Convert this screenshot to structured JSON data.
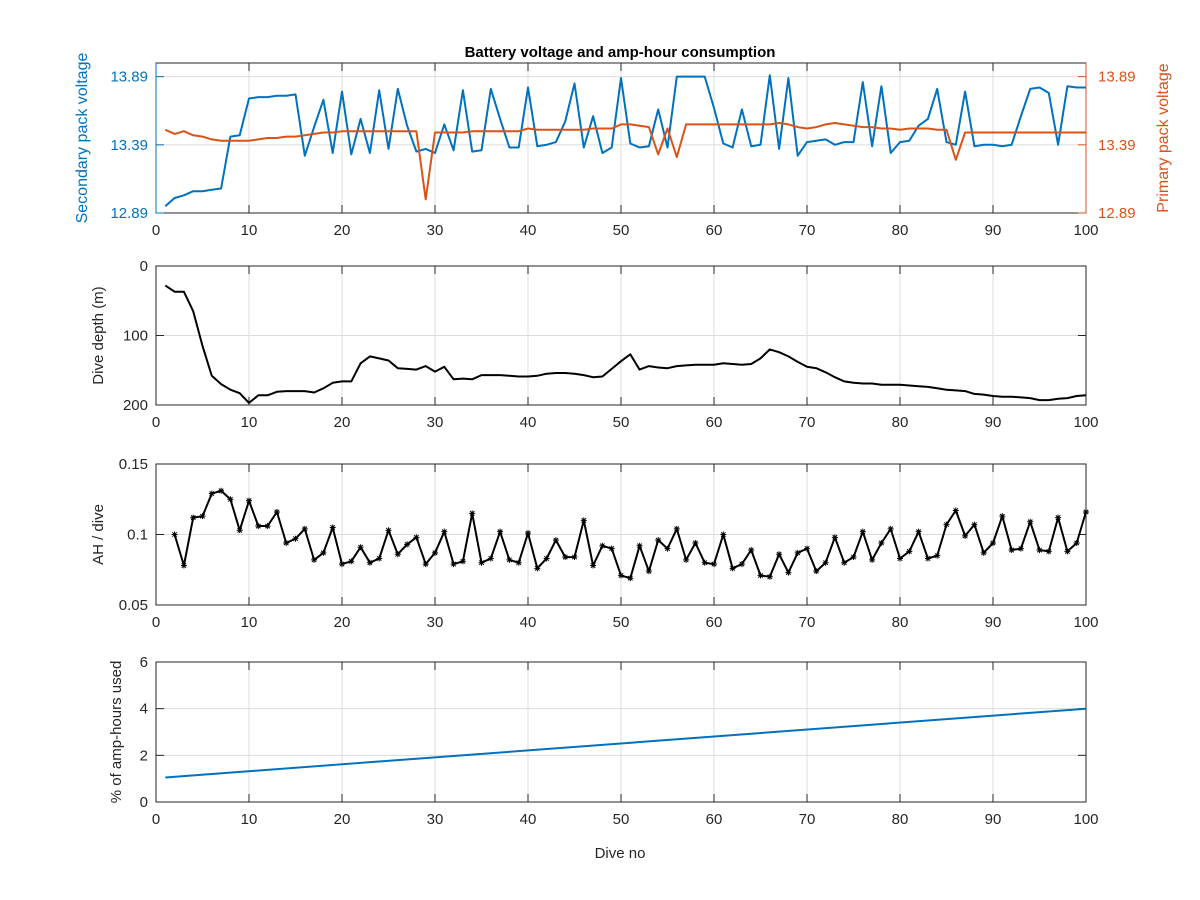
{
  "figure": {
    "title": "Battery voltage and amp-hour consumption",
    "xlabel": "Dive no"
  },
  "chart_data": [
    {
      "type": "line",
      "title": "Battery voltage and amp-hour consumption",
      "xlabel": "",
      "xlim": [
        0,
        100
      ],
      "xticks": [
        0,
        10,
        20,
        30,
        40,
        50,
        60,
        70,
        80,
        90,
        100
      ],
      "grid": true,
      "left_axis": {
        "label": "Secondary pack voltage",
        "ylim": [
          12.89,
          13.99
        ],
        "ticks": [
          12.89,
          13.39,
          13.89
        ],
        "tick_labels": [
          "12.89",
          "13.39",
          "13.89"
        ],
        "color": "#0072BD"
      },
      "right_axis": {
        "label": "Primary pack voltage",
        "ylim": [
          12.89,
          13.99
        ],
        "ticks": [
          12.89,
          13.39,
          13.89
        ],
        "tick_labels": [
          "12.89",
          "13.39",
          "13.89"
        ],
        "color": "#D95319"
      },
      "series": [
        {
          "axis": "left",
          "color": "#0072BD",
          "x": [
            1,
            2,
            3,
            4,
            5,
            6,
            7,
            8,
            9,
            10,
            11,
            12,
            13,
            14,
            15,
            16,
            17,
            18,
            19,
            20,
            21,
            22,
            23,
            24,
            25,
            26,
            27,
            28,
            29,
            30,
            31,
            32,
            33,
            34,
            35,
            36,
            37,
            38,
            39,
            40,
            41,
            42,
            43,
            44,
            45,
            46,
            47,
            48,
            49,
            50,
            51,
            52,
            53,
            54,
            55,
            56,
            57,
            58,
            59,
            60,
            61,
            62,
            63,
            64,
            65,
            66,
            67,
            68,
            69,
            70,
            71,
            72,
            73,
            74,
            75,
            76,
            77,
            78,
            79,
            80,
            81,
            82,
            83,
            84,
            85,
            86,
            87,
            88,
            89,
            90,
            91,
            92,
            93,
            94,
            95,
            96,
            97,
            98,
            99,
            100
          ],
          "values": [
            12.94,
            13.0,
            13.02,
            13.05,
            13.05,
            13.06,
            13.07,
            13.45,
            13.46,
            13.73,
            13.74,
            13.74,
            13.75,
            13.75,
            13.76,
            13.31,
            13.52,
            13.72,
            13.33,
            13.78,
            13.32,
            13.58,
            13.33,
            13.79,
            13.36,
            13.8,
            13.53,
            13.34,
            13.36,
            13.33,
            13.54,
            13.35,
            13.79,
            13.34,
            13.35,
            13.8,
            13.58,
            13.37,
            13.37,
            13.81,
            13.38,
            13.39,
            13.41,
            13.56,
            13.84,
            13.37,
            13.6,
            13.33,
            13.37,
            13.88,
            13.4,
            13.37,
            13.38,
            13.65,
            13.37,
            13.89,
            13.89,
            13.89,
            13.89,
            13.66,
            13.4,
            13.37,
            13.65,
            13.38,
            13.39,
            13.9,
            13.36,
            13.88,
            13.31,
            13.41,
            13.42,
            13.43,
            13.39,
            13.41,
            13.41,
            13.85,
            13.38,
            13.82,
            13.33,
            13.41,
            13.42,
            13.53,
            13.58,
            13.8,
            13.41,
            13.39,
            13.78,
            13.38,
            13.39,
            13.39,
            13.38,
            13.39,
            13.6,
            13.8,
            13.81,
            13.77,
            13.39,
            13.82,
            13.81,
            13.81
          ]
        },
        {
          "axis": "right",
          "color": "#D95319",
          "x": [
            1,
            2,
            3,
            4,
            5,
            6,
            7,
            8,
            9,
            10,
            11,
            12,
            13,
            14,
            15,
            16,
            17,
            18,
            19,
            20,
            21,
            22,
            23,
            24,
            25,
            26,
            27,
            28,
            29,
            30,
            31,
            32,
            33,
            34,
            35,
            36,
            37,
            38,
            39,
            40,
            41,
            42,
            43,
            44,
            45,
            46,
            47,
            48,
            49,
            50,
            51,
            52,
            53,
            54,
            55,
            56,
            57,
            58,
            59,
            60,
            61,
            62,
            63,
            64,
            65,
            66,
            67,
            68,
            69,
            70,
            71,
            72,
            73,
            74,
            75,
            76,
            77,
            78,
            79,
            80,
            81,
            82,
            83,
            84,
            85,
            86,
            87,
            88,
            89,
            90,
            91,
            92,
            93,
            94,
            95,
            96,
            97,
            98,
            99,
            100
          ],
          "values": [
            13.5,
            13.47,
            13.49,
            13.46,
            13.45,
            13.43,
            13.42,
            13.42,
            13.42,
            13.42,
            13.43,
            13.44,
            13.44,
            13.45,
            13.45,
            13.46,
            13.47,
            13.48,
            13.48,
            13.49,
            13.49,
            13.49,
            13.49,
            13.49,
            13.49,
            13.49,
            13.49,
            13.49,
            12.99,
            13.48,
            13.48,
            13.48,
            13.48,
            13.49,
            13.49,
            13.49,
            13.49,
            13.49,
            13.49,
            13.51,
            13.5,
            13.5,
            13.5,
            13.5,
            13.5,
            13.5,
            13.51,
            13.51,
            13.51,
            13.54,
            13.54,
            13.53,
            13.52,
            13.32,
            13.51,
            13.3,
            13.54,
            13.54,
            13.54,
            13.54,
            13.54,
            13.54,
            13.54,
            13.54,
            13.54,
            13.54,
            13.55,
            13.54,
            13.52,
            13.51,
            13.52,
            13.54,
            13.55,
            13.54,
            13.53,
            13.52,
            13.52,
            13.51,
            13.51,
            13.5,
            13.51,
            13.51,
            13.51,
            13.5,
            13.5,
            13.28,
            13.48,
            13.48,
            13.48,
            13.48,
            13.48,
            13.48,
            13.48,
            13.48,
            13.48,
            13.48,
            13.48,
            13.48,
            13.48,
            13.48
          ]
        }
      ]
    },
    {
      "type": "line",
      "title": "",
      "xlabel": "",
      "ylabel": "Dive depth (m)",
      "xlim": [
        0,
        100
      ],
      "ylim": [
        0,
        200
      ],
      "y_reversed": true,
      "xticks": [
        0,
        10,
        20,
        30,
        40,
        50,
        60,
        70,
        80,
        90,
        100
      ],
      "yticks": [
        0,
        100,
        200
      ],
      "grid": true,
      "series": [
        {
          "color": "#000000",
          "x": [
            1,
            2,
            3,
            4,
            5,
            6,
            7,
            8,
            9,
            10,
            11,
            12,
            13,
            14,
            15,
            16,
            17,
            18,
            19,
            20,
            21,
            22,
            23,
            24,
            25,
            26,
            27,
            28,
            29,
            30,
            31,
            32,
            33,
            34,
            35,
            36,
            37,
            38,
            39,
            40,
            41,
            42,
            43,
            44,
            45,
            46,
            47,
            48,
            49,
            50,
            51,
            52,
            53,
            54,
            55,
            56,
            57,
            58,
            59,
            60,
            61,
            62,
            63,
            64,
            65,
            66,
            67,
            68,
            69,
            70,
            71,
            72,
            73,
            74,
            75,
            76,
            77,
            78,
            79,
            80,
            81,
            82,
            83,
            84,
            85,
            86,
            87,
            88,
            89,
            90,
            91,
            92,
            93,
            94,
            95,
            96,
            97,
            98,
            99,
            100
          ],
          "values": [
            28,
            37,
            37,
            65,
            115,
            158,
            170,
            178,
            183,
            197,
            186,
            186,
            181,
            180,
            180,
            180,
            182,
            176,
            168,
            166,
            166,
            140,
            130,
            133,
            136,
            147,
            148,
            149,
            144,
            152,
            145,
            163,
            162,
            163,
            157,
            157,
            157,
            158,
            159,
            159,
            158,
            155,
            154,
            154,
            155,
            157,
            160,
            159,
            148,
            137,
            127,
            149,
            144,
            146,
            147,
            144,
            143,
            142,
            142,
            142,
            140,
            141,
            142,
            141,
            133,
            120,
            124,
            130,
            138,
            145,
            147,
            153,
            160,
            166,
            168,
            169,
            169,
            171,
            171,
            171,
            172,
            173,
            174,
            176,
            178,
            179,
            180,
            184,
            185,
            187,
            188,
            188,
            189,
            190,
            193,
            193,
            191,
            190,
            187,
            186
          ]
        }
      ]
    },
    {
      "type": "line",
      "title": "",
      "xlabel": "",
      "ylabel": "AH / dive",
      "xlim": [
        0,
        100
      ],
      "ylim": [
        0.05,
        0.15
      ],
      "xticks": [
        0,
        10,
        20,
        30,
        40,
        50,
        60,
        70,
        80,
        90,
        100
      ],
      "yticks": [
        0.05,
        0.1,
        0.15
      ],
      "ytick_labels": [
        "0.05",
        "0.1",
        "0.15"
      ],
      "grid": true,
      "marker": "star",
      "series": [
        {
          "color": "#000000",
          "x": [
            2,
            3,
            4,
            5,
            6,
            7,
            8,
            9,
            10,
            11,
            12,
            13,
            14,
            15,
            16,
            17,
            18,
            19,
            20,
            21,
            22,
            23,
            24,
            25,
            26,
            27,
            28,
            29,
            30,
            31,
            32,
            33,
            34,
            35,
            36,
            37,
            38,
            39,
            40,
            41,
            42,
            43,
            44,
            45,
            46,
            47,
            48,
            49,
            50,
            51,
            52,
            53,
            54,
            55,
            56,
            57,
            58,
            59,
            60,
            61,
            62,
            63,
            64,
            65,
            66,
            67,
            68,
            69,
            70,
            71,
            72,
            73,
            74,
            75,
            76,
            77,
            78,
            79,
            80,
            81,
            82,
            83,
            84,
            85,
            86,
            87,
            88,
            89,
            90,
            91,
            92,
            93,
            94,
            95,
            96,
            97,
            98,
            99,
            100
          ],
          "values": [
            0.1,
            0.078,
            0.112,
            0.113,
            0.129,
            0.131,
            0.125,
            0.103,
            0.124,
            0.106,
            0.106,
            0.116,
            0.094,
            0.097,
            0.104,
            0.082,
            0.087,
            0.105,
            0.079,
            0.081,
            0.091,
            0.08,
            0.083,
            0.103,
            0.086,
            0.093,
            0.098,
            0.079,
            0.087,
            0.102,
            0.079,
            0.081,
            0.115,
            0.08,
            0.083,
            0.102,
            0.082,
            0.08,
            0.101,
            0.076,
            0.083,
            0.096,
            0.084,
            0.084,
            0.11,
            0.078,
            0.092,
            0.09,
            0.071,
            0.069,
            0.092,
            0.074,
            0.096,
            0.09,
            0.104,
            0.082,
            0.094,
            0.08,
            0.079,
            0.1,
            0.076,
            0.079,
            0.089,
            0.071,
            0.07,
            0.086,
            0.073,
            0.087,
            0.09,
            0.074,
            0.08,
            0.098,
            0.08,
            0.084,
            0.102,
            0.082,
            0.094,
            0.104,
            0.083,
            0.088,
            0.102,
            0.083,
            0.085,
            0.107,
            0.117,
            0.099,
            0.107,
            0.087,
            0.094,
            0.113,
            0.089,
            0.09,
            0.109,
            0.089,
            0.088,
            0.112,
            0.088,
            0.094,
            0.116
          ]
        }
      ]
    },
    {
      "type": "line",
      "title": "",
      "xlabel": "Dive no",
      "ylabel": "% of amp-hours used",
      "xlim": [
        0,
        100
      ],
      "ylim": [
        0,
        6
      ],
      "xticks": [
        0,
        10,
        20,
        30,
        40,
        50,
        60,
        70,
        80,
        90,
        100
      ],
      "yticks": [
        0,
        2,
        4,
        6
      ],
      "grid": true,
      "series": [
        {
          "color": "#0072BD",
          "x": [
            1,
            100
          ],
          "values": [
            1.05,
            4.0
          ]
        }
      ]
    }
  ]
}
